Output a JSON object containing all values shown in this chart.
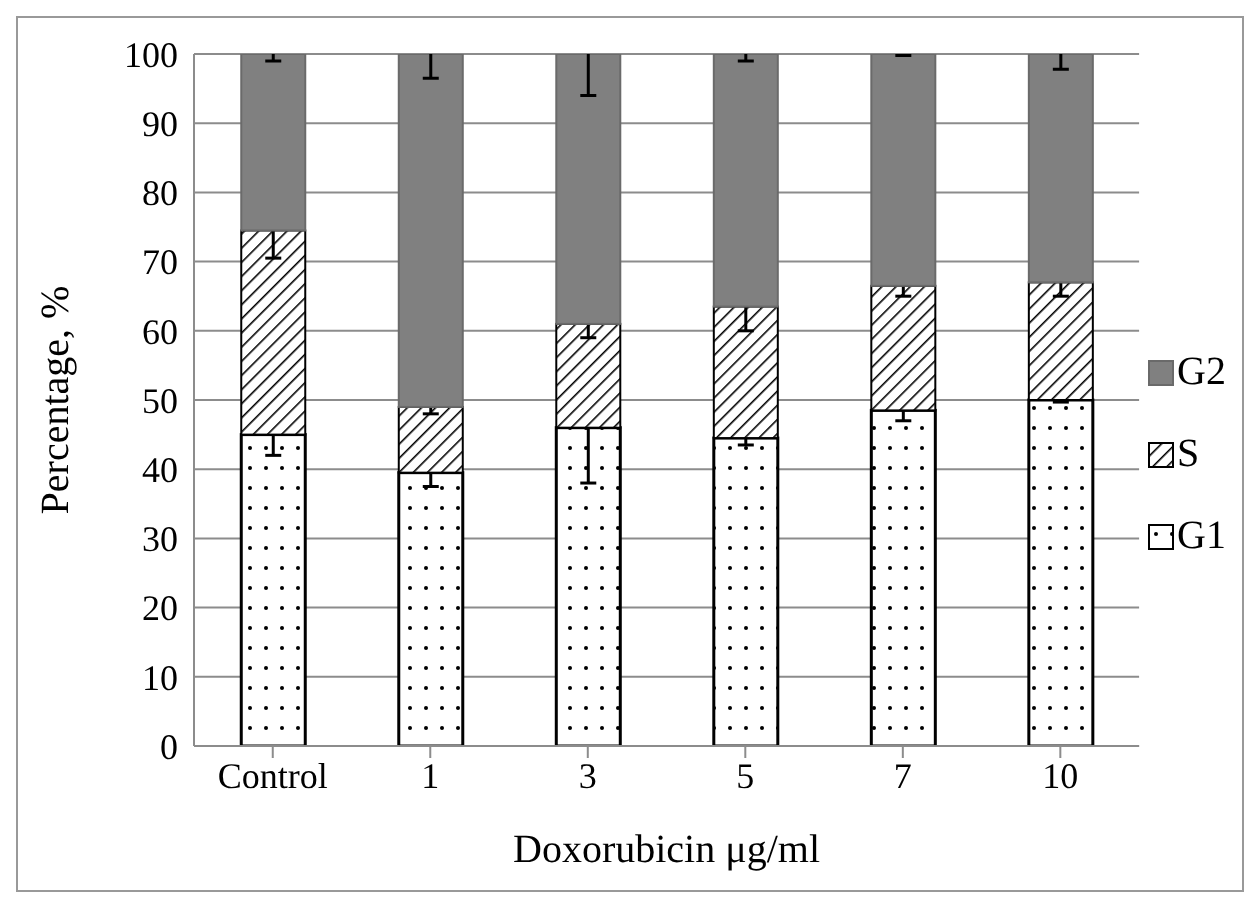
{
  "chart_data": {
    "type": "bar",
    "stacked": true,
    "xlabel": "Doxorubicin μg/ml",
    "ylabel": "Percentage, %",
    "categories": [
      "Control",
      "1",
      "3",
      "5",
      "7",
      "10"
    ],
    "series": [
      {
        "name": "G1",
        "color": "#000000",
        "values": [
          45,
          39.5,
          46,
          44.5,
          48.5,
          50
        ],
        "errors": [
          3,
          2,
          8,
          1,
          1.5,
          0.3
        ]
      },
      {
        "name": "S",
        "color": "#000000",
        "values": [
          29.5,
          9.5,
          15,
          19,
          18,
          17
        ],
        "errors": [
          4,
          1,
          2,
          3.5,
          1.5,
          2
        ]
      },
      {
        "name": "G2",
        "color": "#808080",
        "values": [
          25.5,
          51,
          39,
          36.5,
          33.5,
          33
        ],
        "errors": [
          1,
          3.5,
          6,
          1,
          0.2,
          2.2
        ]
      }
    ],
    "ylim": [
      0,
      100
    ],
    "yticks": [
      0,
      10,
      20,
      30,
      40,
      50,
      60,
      70,
      80,
      90,
      100
    ],
    "grid": "y",
    "legend": "right"
  }
}
